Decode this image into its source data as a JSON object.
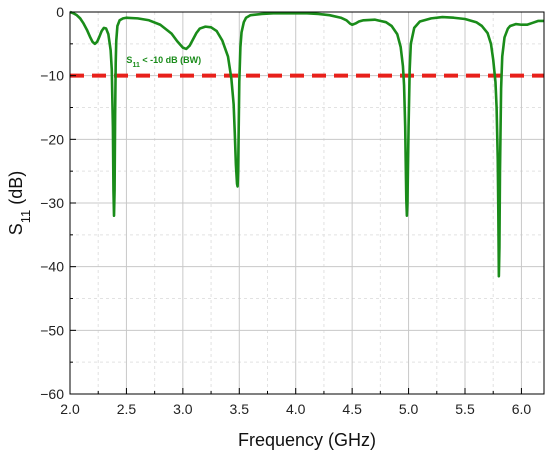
{
  "chart_data": {
    "type": "line",
    "title": "",
    "xlabel": "Frequency (GHz)",
    "ylabel_main": "S",
    "ylabel_sub": "11",
    "ylabel_unit": " (dB)",
    "xlim": [
      2.0,
      6.2
    ],
    "ylim": [
      -60,
      0
    ],
    "x_ticks": [
      2.0,
      2.5,
      3.0,
      3.5,
      4.0,
      4.5,
      5.0,
      5.5,
      6.0
    ],
    "x_tick_labels": [
      "2.0",
      "2.5",
      "3.0",
      "3.5",
      "4.0",
      "4.5",
      "5.0",
      "5.5",
      "6.0"
    ],
    "y_ticks": [
      0,
      -10,
      -20,
      -30,
      -40,
      -50,
      -60
    ],
    "y_tick_labels": [
      "0",
      "−10",
      "−20",
      "−30",
      "−40",
      "−50",
      "−60"
    ],
    "grid": true,
    "colors": {
      "series": "#1a8c1a",
      "threshold": "#e8201a",
      "grid_major": "#c8c8c8",
      "grid_minor": "#e2e2e2"
    },
    "series": [
      {
        "x": [
          2.0,
          2.03,
          2.06,
          2.09,
          2.12,
          2.15,
          2.18,
          2.2,
          2.22,
          2.24,
          2.26,
          2.28,
          2.3,
          2.32,
          2.34,
          2.36,
          2.37,
          2.38,
          2.385,
          2.39,
          2.395,
          2.4,
          2.405,
          2.41,
          2.42,
          2.44,
          2.47,
          2.5,
          2.6,
          2.7,
          2.8,
          2.9,
          2.95,
          3.0,
          3.03,
          3.06,
          3.09,
          3.12,
          3.15,
          3.2,
          3.25,
          3.3,
          3.35,
          3.4,
          3.43,
          3.45,
          3.46,
          3.47,
          3.48,
          3.485,
          3.49,
          3.495,
          3.5,
          3.51,
          3.52,
          3.54,
          3.56,
          3.6,
          3.7,
          3.8,
          3.9,
          4.0,
          4.1,
          4.2,
          4.3,
          4.4,
          4.45,
          4.48,
          4.5,
          4.53,
          4.56,
          4.6,
          4.7,
          4.8,
          4.85,
          4.9,
          4.93,
          4.95,
          4.96,
          4.97,
          4.975,
          4.98,
          4.985,
          4.99,
          5.0,
          5.01,
          5.02,
          5.05,
          5.1,
          5.2,
          5.3,
          5.4,
          5.5,
          5.6,
          5.65,
          5.7,
          5.73,
          5.75,
          5.77,
          5.78,
          5.79,
          5.795,
          5.8,
          5.805,
          5.81,
          5.82,
          5.83,
          5.85,
          5.88,
          5.9,
          5.95,
          6.0,
          6.05,
          6.1,
          6.15,
          6.2
        ],
        "y": [
          0.0,
          -0.2,
          -0.5,
          -1.0,
          -1.8,
          -2.8,
          -4.0,
          -4.7,
          -5.0,
          -4.7,
          -3.9,
          -3.0,
          -2.5,
          -2.6,
          -3.5,
          -6.0,
          -9.0,
          -18.0,
          -28.0,
          -32.0,
          -28.0,
          -16.0,
          -8.0,
          -4.5,
          -2.2,
          -1.3,
          -1.0,
          -0.9,
          -1.0,
          -1.3,
          -2.0,
          -3.4,
          -4.6,
          -5.6,
          -5.8,
          -5.3,
          -4.3,
          -3.3,
          -2.6,
          -2.3,
          -2.4,
          -3.0,
          -4.5,
          -7.0,
          -10.5,
          -14.5,
          -19.0,
          -24.0,
          -27.0,
          -27.4,
          -25.0,
          -18.0,
          -11.0,
          -5.5,
          -3.2,
          -1.6,
          -0.9,
          -0.5,
          -0.3,
          -0.2,
          -0.2,
          -0.2,
          -0.2,
          -0.3,
          -0.5,
          -0.9,
          -1.3,
          -1.8,
          -2.0,
          -1.8,
          -1.5,
          -1.3,
          -1.2,
          -1.6,
          -2.2,
          -3.5,
          -5.5,
          -8.5,
          -11.5,
          -18.0,
          -24.0,
          -29.5,
          -32.0,
          -30.0,
          -18.0,
          -9.0,
          -5.0,
          -2.5,
          -1.5,
          -1.0,
          -0.8,
          -0.9,
          -1.1,
          -1.6,
          -2.2,
          -3.3,
          -5.0,
          -7.5,
          -11.0,
          -15.0,
          -23.0,
          -31.0,
          -41.5,
          -37.0,
          -25.0,
          -12.0,
          -7.0,
          -4.0,
          -2.6,
          -2.2,
          -1.9,
          -2.0,
          -2.0,
          -1.7,
          -1.4,
          -1.4
        ]
      }
    ],
    "threshold": {
      "y": -10,
      "style": "dashed"
    },
    "annotation": {
      "main": "S",
      "sub": "11",
      "rest": " < -10 dB (BW)",
      "x": 2.5,
      "y": -8
    }
  }
}
